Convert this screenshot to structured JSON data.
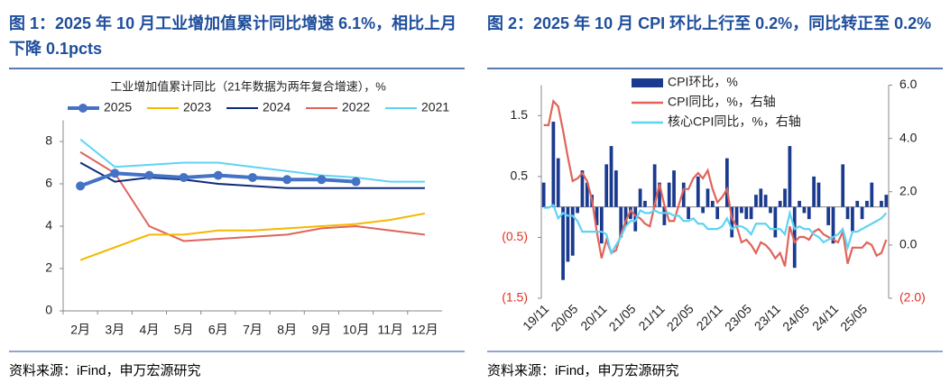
{
  "chart_data": [
    {
      "type": "line",
      "title": "图 1：2025 年 10 月工业增加值累计同比增速 6.1%，相比上月下降 0.1pcts",
      "subtitle": "工业增加值累计同比（21年数据为两年复合增速），%",
      "source": "资料来源：iFind，申万宏源研究",
      "categories": [
        "2月",
        "3月",
        "4月",
        "5月",
        "6月",
        "7月",
        "8月",
        "9月",
        "10月",
        "11月",
        "12月"
      ],
      "ylim": [
        0,
        9
      ],
      "yticks": [
        0,
        2,
        4,
        6,
        8
      ],
      "grid": false,
      "legend": "top",
      "series": [
        {
          "name": "2025",
          "color": "#4472c4",
          "line_width": 4,
          "markers": true,
          "values": [
            5.9,
            6.5,
            6.4,
            6.3,
            6.4,
            6.3,
            6.2,
            6.2,
            6.1,
            null,
            null
          ]
        },
        {
          "name": "2023",
          "color": "#f5b800",
          "line_width": 2,
          "markers": false,
          "values": [
            2.4,
            3.0,
            3.6,
            3.6,
            3.8,
            3.8,
            3.9,
            4.0,
            4.1,
            4.3,
            4.6
          ]
        },
        {
          "name": "2024",
          "color": "#0d2c7a",
          "line_width": 2,
          "markers": false,
          "values": [
            7.0,
            6.1,
            6.3,
            6.2,
            6.0,
            5.9,
            5.8,
            5.8,
            5.8,
            5.8,
            5.8
          ]
        },
        {
          "name": "2022",
          "color": "#e0645a",
          "line_width": 2,
          "markers": false,
          "values": [
            7.5,
            6.5,
            4.0,
            3.3,
            3.4,
            3.5,
            3.6,
            3.9,
            4.0,
            3.8,
            3.6
          ]
        },
        {
          "name": "2021",
          "color": "#5fd3f3",
          "line_width": 2,
          "markers": false,
          "values": [
            8.1,
            6.8,
            6.9,
            7.0,
            7.0,
            6.8,
            6.6,
            6.4,
            6.3,
            6.1,
            6.1
          ]
        }
      ]
    },
    {
      "type": "combo",
      "title": "图 2：2025 年 10 月 CPI 环比上行至 0.2%，同比转正至 0.2%",
      "source": "资料来源：iFind，申万宏源研究",
      "categories": [
        "19/11",
        null,
        null,
        null,
        null,
        null,
        "20/05",
        null,
        null,
        null,
        null,
        null,
        "20/11",
        null,
        null,
        null,
        null,
        null,
        "21/05",
        null,
        null,
        null,
        null,
        null,
        "21/11",
        null,
        null,
        null,
        null,
        null,
        "22/05",
        null,
        null,
        null,
        null,
        null,
        "22/11",
        null,
        null,
        null,
        null,
        null,
        "23/05",
        null,
        null,
        null,
        null,
        null,
        "23/11",
        null,
        null,
        null,
        null,
        null,
        "24/05",
        null,
        null,
        null,
        null,
        null,
        "24/11",
        null,
        null,
        null,
        null,
        null,
        "25/05",
        null,
        null,
        null,
        null,
        null
      ],
      "ylim": [
        -1.5,
        2.0
      ],
      "yticks": [
        {
          "value": -1.5,
          "label": "(1.5)"
        },
        {
          "value": -0.5,
          "label": "(0.5)"
        },
        0.5,
        1.5
      ],
      "y2lim": [
        -2,
        6
      ],
      "y2ticks": [
        {
          "value": -2,
          "label": "(2.0)"
        },
        {
          "value": 0,
          "label": "0.0"
        },
        {
          "value": 2,
          "label": "2.0"
        },
        {
          "value": 4,
          "label": "4.0"
        },
        {
          "value": 6,
          "label": "6.0"
        }
      ],
      "grid": false,
      "legend": "top-left",
      "series": [
        {
          "name": "CPI环比，%",
          "type": "bar",
          "color": "#1a3a8f",
          "values": [
            0.4,
            0.0,
            1.4,
            0.8,
            -1.2,
            -0.9,
            -0.8,
            -0.1,
            0.6,
            0.4,
            0.2,
            -0.3,
            -0.6,
            0.7,
            1.0,
            0.6,
            -0.5,
            -0.3,
            -0.2,
            -0.4,
            0.3,
            0.1,
            0.0,
            0.7,
            0.4,
            -0.3,
            0.4,
            0.6,
            0.0,
            0.4,
            -0.2,
            0.0,
            0.5,
            -0.1,
            0.3,
            0.1,
            -0.2,
            0.0,
            0.8,
            -0.5,
            -0.3,
            -0.1,
            -0.2,
            -0.2,
            0.2,
            0.3,
            0.2,
            -0.1,
            -0.5,
            0.1,
            0.3,
            1.0,
            -1.0,
            0.1,
            -0.1,
            -0.2,
            0.5,
            0.4,
            0.0,
            -0.3,
            -0.6,
            0.0,
            0.7,
            -0.2,
            -0.4,
            0.1,
            -0.2,
            0.1,
            0.4,
            0.0,
            0.1,
            0.2
          ]
        },
        {
          "name": "CPI同比，%，右轴",
          "type": "line",
          "axis": "y2",
          "color": "#e0645a",
          "values": [
            4.5,
            4.5,
            5.4,
            5.2,
            4.3,
            3.3,
            2.4,
            2.5,
            2.7,
            2.4,
            1.7,
            0.5,
            -0.5,
            0.2,
            -0.3,
            -0.2,
            0.4,
            0.9,
            1.3,
            1.1,
            1.0,
            0.8,
            0.7,
            1.5,
            2.3,
            1.5,
            0.9,
            0.9,
            1.5,
            2.1,
            2.1,
            2.5,
            2.7,
            2.5,
            2.8,
            2.1,
            1.6,
            1.8,
            2.1,
            1.0,
            0.7,
            0.1,
            0.2,
            0.0,
            -0.3,
            0.1,
            0.0,
            -0.2,
            -0.5,
            -0.3,
            -0.8,
            0.7,
            0.1,
            0.3,
            0.3,
            0.2,
            0.5,
            0.6,
            0.4,
            0.3,
            0.2,
            0.1,
            0.5,
            -0.7,
            -0.1,
            -0.1,
            -0.1,
            0.1,
            0.0,
            -0.4,
            -0.3,
            0.2
          ]
        },
        {
          "name": "核心CPI同比，%，右轴",
          "type": "line",
          "axis": "y2",
          "color": "#5fd3f3",
          "values": [
            1.4,
            1.4,
            1.5,
            1.0,
            1.2,
            1.1,
            1.1,
            0.9,
            0.5,
            0.5,
            0.5,
            0.5,
            0.5,
            0.4,
            -0.3,
            0.0,
            0.3,
            0.7,
            0.9,
            0.9,
            1.3,
            1.2,
            1.2,
            1.3,
            1.2,
            1.2,
            1.2,
            1.1,
            1.1,
            0.9,
            0.9,
            1.0,
            0.8,
            0.8,
            0.6,
            0.6,
            0.6,
            0.7,
            1.0,
            0.6,
            0.7,
            0.7,
            0.6,
            0.4,
            0.8,
            0.8,
            0.8,
            0.6,
            0.6,
            0.6,
            0.4,
            1.2,
            0.6,
            0.7,
            0.6,
            0.6,
            0.4,
            0.3,
            0.1,
            0.2,
            0.3,
            0.4,
            0.6,
            -0.1,
            0.5,
            0.5,
            0.6,
            0.7,
            0.8,
            0.9,
            1.0,
            1.2
          ]
        }
      ]
    }
  ]
}
